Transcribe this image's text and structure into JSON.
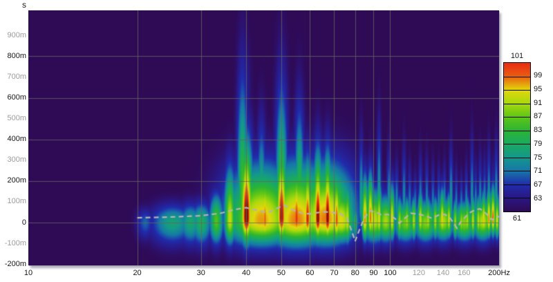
{
  "chart_data": {
    "type": "heatmap",
    "title": "",
    "x_axis": {
      "label_suffix": "Hz",
      "scale": "log",
      "min_hz": 10,
      "max_hz": 200,
      "ticks": [
        {
          "hz": 10,
          "label": "10",
          "muted": false
        },
        {
          "hz": 20,
          "label": "20",
          "muted": false
        },
        {
          "hz": 30,
          "label": "30",
          "muted": false
        },
        {
          "hz": 40,
          "label": "40",
          "muted": false
        },
        {
          "hz": 50,
          "label": "50",
          "muted": false
        },
        {
          "hz": 60,
          "label": "60",
          "muted": false
        },
        {
          "hz": 70,
          "label": "70",
          "muted": false
        },
        {
          "hz": 80,
          "label": "80",
          "muted": false
        },
        {
          "hz": 90,
          "label": "90",
          "muted": false
        },
        {
          "hz": 100,
          "label": "100",
          "muted": false
        },
        {
          "hz": 120,
          "label": "120",
          "muted": true
        },
        {
          "hz": 140,
          "label": "140",
          "muted": true
        },
        {
          "hz": 160,
          "label": "160",
          "muted": true
        },
        {
          "hz": 200,
          "label": "200Hz",
          "muted": false
        }
      ],
      "grid_hz": [
        20,
        30,
        40,
        50,
        60,
        70,
        80,
        90,
        100,
        200
      ]
    },
    "y_axis": {
      "unit": "s",
      "min_ms": -206,
      "max_ms": 1021,
      "ticks": [
        {
          "ms": 900,
          "label": "900m",
          "muted": true
        },
        {
          "ms": 800,
          "label": "800m",
          "muted": false
        },
        {
          "ms": 700,
          "label": "700m",
          "muted": true
        },
        {
          "ms": 600,
          "label": "600m",
          "muted": false
        },
        {
          "ms": 500,
          "label": "500m",
          "muted": true
        },
        {
          "ms": 400,
          "label": "400m",
          "muted": false
        },
        {
          "ms": 300,
          "label": "300m",
          "muted": true
        },
        {
          "ms": 200,
          "label": "200m",
          "muted": false
        },
        {
          "ms": 100,
          "label": "100m",
          "muted": true
        },
        {
          "ms": 0,
          "label": "0",
          "muted": false
        },
        {
          "ms": -100,
          "label": "-100m",
          "muted": true
        },
        {
          "ms": -200,
          "label": "-200m",
          "muted": false
        }
      ],
      "grid_ms": [
        0,
        200,
        400,
        600,
        800
      ]
    },
    "legend": {
      "top_label": "101",
      "bottom_label": "61",
      "boundary_levels": [
        99,
        95,
        91,
        87,
        83,
        79,
        75,
        71,
        67,
        63
      ],
      "boundary_colors": [
        "#e92c12",
        "#e95d11",
        "#e2d70c",
        "#a8d80e",
        "#5ec616",
        "#2cb434",
        "#1aaa60",
        "#14988b",
        "#1676a8",
        "#202cac",
        "#2a1782",
        "#2f0a55"
      ]
    },
    "colormap": {
      "background": "#2f0a55",
      "stops": [
        [
          61,
          "#2f0a55"
        ],
        [
          63,
          "#2a1782"
        ],
        [
          67,
          "#202cac"
        ],
        [
          71,
          "#1676a8"
        ],
        [
          75,
          "#14988b"
        ],
        [
          79,
          "#1aaa60"
        ],
        [
          83,
          "#2cb434"
        ],
        [
          87,
          "#5ec616"
        ],
        [
          91,
          "#a8d80e"
        ],
        [
          95,
          "#e2d70c"
        ],
        [
          99,
          "#e95d11"
        ],
        [
          101,
          "#e92c12"
        ],
        [
          104,
          "#7e1407"
        ]
      ]
    },
    "grid_color": "rgba(100,100,100,0.8)",
    "blobs_fields": [
      "freq_hz",
      "t_center_ms",
      "peak_db",
      "sigma_up_ms",
      "sigma_down_ms",
      "sigma_octaves"
    ],
    "blobs": [
      [
        21,
        0,
        70,
        60,
        70,
        0.07
      ],
      [
        25,
        0,
        77,
        75,
        90,
        0.18
      ],
      [
        28,
        0,
        78,
        80,
        92,
        0.1
      ],
      [
        30,
        0,
        80,
        85,
        95,
        0.09
      ],
      [
        33,
        5,
        86,
        120,
        95,
        0.06
      ],
      [
        36,
        10,
        93,
        220,
        100,
        0.05
      ],
      [
        44,
        10,
        97,
        230,
        105,
        0.3
      ],
      [
        55,
        10,
        98,
        240,
        110,
        0.3
      ],
      [
        66,
        15,
        98,
        230,
        108,
        0.25
      ],
      [
        73,
        5,
        95,
        150,
        90,
        0.12
      ],
      [
        40,
        25,
        106,
        320,
        115,
        0.055
      ],
      [
        45,
        10,
        99,
        220,
        100,
        0.036
      ],
      [
        50,
        25,
        104,
        300,
        112,
        0.05
      ],
      [
        55,
        15,
        101,
        230,
        100,
        0.04
      ],
      [
        59,
        15,
        102,
        240,
        100,
        0.038
      ],
      [
        63,
        20,
        105,
        270,
        105,
        0.04
      ],
      [
        67,
        20,
        105,
        260,
        105,
        0.038
      ],
      [
        71,
        10,
        100,
        210,
        95,
        0.032
      ],
      [
        76,
        5,
        94,
        160,
        90,
        0.03
      ],
      [
        80,
        0,
        83,
        70,
        75,
        0.02
      ],
      [
        85,
        15,
        98,
        180,
        90,
        0.028
      ],
      [
        88,
        20,
        99,
        190,
        90,
        0.027
      ],
      [
        90,
        10,
        93,
        130,
        90,
        0.1
      ],
      [
        93,
        10,
        95,
        160,
        85,
        0.026
      ],
      [
        97,
        5,
        91,
        110,
        85,
        0.08
      ],
      [
        101,
        10,
        95,
        150,
        82,
        0.026
      ],
      [
        106,
        5,
        91,
        100,
        78,
        0.025
      ],
      [
        110,
        0,
        88,
        90,
        80,
        0.1
      ],
      [
        111,
        5,
        91,
        100,
        78,
        0.025
      ],
      [
        116,
        5,
        92,
        100,
        76,
        0.025
      ],
      [
        121,
        10,
        94,
        120,
        76,
        0.025
      ],
      [
        125,
        0,
        89,
        95,
        80,
        0.1
      ],
      [
        127,
        5,
        92,
        100,
        74,
        0.024
      ],
      [
        133,
        5,
        92,
        100,
        74,
        0.024
      ],
      [
        139,
        10,
        96,
        130,
        76,
        0.025
      ],
      [
        140,
        5,
        91,
        100,
        80,
        0.09
      ],
      [
        145,
        10,
        94,
        110,
        74,
        0.023
      ],
      [
        151,
        0,
        91,
        95,
        72,
        0.022
      ],
      [
        157,
        0,
        91,
        95,
        72,
        0.022
      ],
      [
        160,
        0,
        89,
        90,
        78,
        0.1
      ],
      [
        163,
        5,
        92,
        100,
        72,
        0.022
      ],
      [
        169,
        5,
        93,
        105,
        72,
        0.022
      ],
      [
        175,
        5,
        93,
        105,
        72,
        0.022
      ],
      [
        180,
        5,
        92,
        100,
        80,
        0.09
      ],
      [
        181,
        10,
        96,
        120,
        74,
        0.023
      ],
      [
        187,
        15,
        98,
        130,
        76,
        0.023
      ],
      [
        192,
        20,
        100,
        135,
        76,
        0.022
      ],
      [
        197,
        10,
        95,
        115,
        74,
        0.022
      ],
      [
        39,
        100,
        86,
        500,
        120,
        0.045
      ],
      [
        44,
        100,
        80,
        310,
        110,
        0.038
      ],
      [
        50,
        100,
        86,
        470,
        120,
        0.05
      ],
      [
        56,
        100,
        84,
        380,
        110,
        0.04
      ],
      [
        62,
        80,
        80,
        205,
        90,
        0.028
      ],
      [
        67,
        80,
        81,
        245,
        95,
        0.03
      ],
      [
        72,
        60,
        78,
        225,
        85,
        0.025
      ],
      [
        78,
        60,
        76,
        170,
        80,
        0.02
      ],
      [
        83,
        70,
        78,
        265,
        80,
        0.02
      ],
      [
        88,
        60,
        78,
        200,
        80,
        0.021
      ],
      [
        93,
        70,
        77,
        320,
        80,
        0.019
      ],
      [
        99,
        60,
        76,
        225,
        75,
        0.019
      ],
      [
        104,
        60,
        75,
        170,
        70,
        0.018
      ],
      [
        109,
        60,
        75,
        230,
        70,
        0.018
      ],
      [
        113,
        50,
        74,
        175,
        70,
        0.017
      ],
      [
        117,
        50,
        74,
        140,
        70,
        0.017
      ],
      [
        121,
        50,
        75,
        205,
        70,
        0.017
      ],
      [
        126,
        50,
        75,
        195,
        70,
        0.016
      ],
      [
        131,
        50,
        74,
        175,
        70,
        0.016
      ],
      [
        136,
        50,
        75,
        160,
        70,
        0.016
      ],
      [
        141,
        50,
        76,
        170,
        70,
        0.016
      ],
      [
        147,
        60,
        77,
        235,
        70,
        0.017
      ],
      [
        152,
        50,
        74,
        160,
        70,
        0.015
      ],
      [
        157,
        50,
        74,
        140,
        70,
        0.015
      ],
      [
        162,
        50,
        75,
        170,
        70,
        0.015
      ],
      [
        168,
        60,
        76,
        260,
        70,
        0.016
      ],
      [
        172,
        50,
        75,
        170,
        70,
        0.015
      ],
      [
        177,
        50,
        76,
        205,
        70,
        0.016
      ],
      [
        182,
        50,
        76,
        190,
        70,
        0.016
      ],
      [
        187,
        60,
        77,
        235,
        70,
        0.016
      ],
      [
        192,
        50,
        76,
        170,
        70,
        0.015
      ],
      [
        196,
        60,
        77,
        250,
        70,
        0.016
      ],
      [
        39.5,
        650,
        65,
        200,
        250,
        0.05
      ],
      [
        50,
        680,
        64,
        140,
        250,
        0.045
      ]
    ],
    "dashed_line": {
      "color": "#b9b4b1",
      "dash": [
        7,
        5
      ],
      "points_hz_ms": [
        [
          20,
          23
        ],
        [
          25,
          27
        ],
        [
          30,
          33
        ],
        [
          34,
          45
        ],
        [
          37,
          62
        ],
        [
          40,
          72
        ],
        [
          43,
          58
        ],
        [
          46,
          48
        ],
        [
          49,
          72
        ],
        [
          51,
          83
        ],
        [
          54,
          60
        ],
        [
          57,
          45
        ],
        [
          60,
          42
        ],
        [
          63,
          48
        ],
        [
          66,
          52
        ],
        [
          70,
          47
        ],
        [
          73,
          42
        ],
        [
          76,
          20
        ],
        [
          79,
          -60
        ],
        [
          80,
          -90
        ],
        [
          82,
          -40
        ],
        [
          85,
          25
        ],
        [
          88,
          57
        ],
        [
          92,
          48
        ],
        [
          95,
          35
        ],
        [
          98,
          40
        ],
        [
          100,
          35
        ],
        [
          103,
          20
        ],
        [
          106,
          -3
        ],
        [
          110,
          22
        ],
        [
          114,
          45
        ],
        [
          118,
          42
        ],
        [
          122,
          38
        ],
        [
          126,
          30
        ],
        [
          130,
          22
        ],
        [
          134,
          30
        ],
        [
          138,
          42
        ],
        [
          142,
          38
        ],
        [
          146,
          25
        ],
        [
          150,
          -5
        ],
        [
          153,
          -27
        ],
        [
          157,
          5
        ],
        [
          162,
          30
        ],
        [
          167,
          50
        ],
        [
          172,
          62
        ],
        [
          177,
          66
        ],
        [
          181,
          55
        ],
        [
          185,
          40
        ],
        [
          189,
          20
        ],
        [
          192,
          13
        ],
        [
          196,
          30
        ],
        [
          200,
          28
        ]
      ]
    }
  },
  "layout_labels": {
    "y_unit": "s",
    "legend_max": "101",
    "legend_min": "61"
  }
}
